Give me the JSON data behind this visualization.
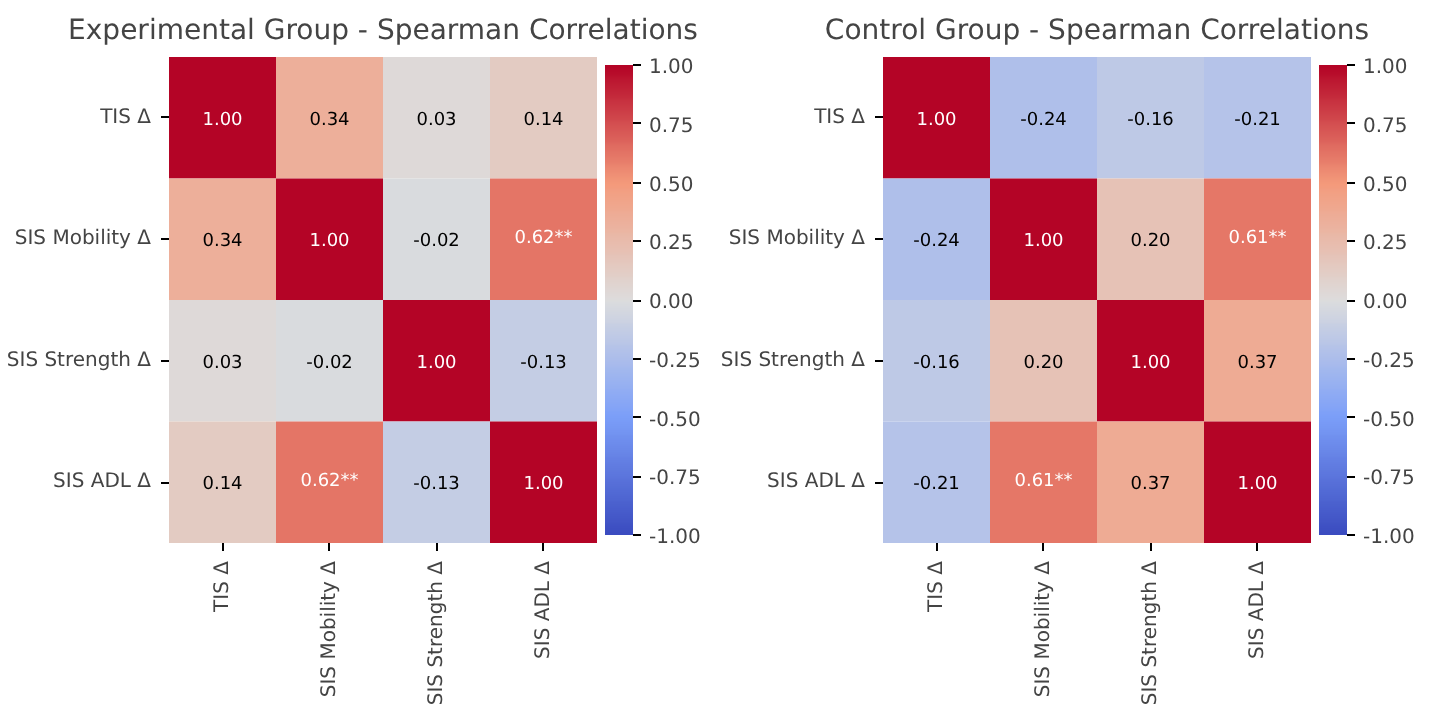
{
  "chart_data": [
    {
      "type": "heatmap",
      "title": "Experimental Group - Spearman Correlations",
      "categories": [
        "TIS Δ",
        "SIS Mobility Δ",
        "SIS Strength Δ",
        "SIS ADL Δ"
      ],
      "y_categories": [
        "TIS Δ",
        "SIS Mobility Δ",
        "SIS Strength Δ",
        "SIS ADL Δ"
      ],
      "cells": [
        [
          1.0,
          0.34,
          0.03,
          0.14
        ],
        [
          0.34,
          1.0,
          -0.02,
          0.62
        ],
        [
          0.03,
          -0.02,
          1.0,
          -0.13
        ],
        [
          0.14,
          0.62,
          -0.13,
          1.0
        ]
      ],
      "cell_labels": [
        [
          "1.00",
          "0.34",
          "0.03",
          "0.14"
        ],
        [
          "0.34",
          "1.00",
          "-0.02",
          "0.62**"
        ],
        [
          "0.03",
          "-0.02",
          "1.00",
          "-0.13"
        ],
        [
          "0.14",
          "0.62**",
          "-0.13",
          "1.00"
        ]
      ],
      "clim": [
        -1,
        1
      ],
      "cticks": [
        {
          "value": -1,
          "label": "-1.00"
        },
        {
          "value": -0.75,
          "label": "-0.75"
        },
        {
          "value": -0.5,
          "label": "-0.50"
        },
        {
          "value": -0.25,
          "label": "-0.25"
        },
        {
          "value": 0,
          "label": "0.00"
        },
        {
          "value": 0.25,
          "label": "0.25"
        },
        {
          "value": 0.5,
          "label": "0.50"
        },
        {
          "value": 0.75,
          "label": "0.75"
        },
        {
          "value": 1,
          "label": "1.00"
        }
      ]
    },
    {
      "type": "heatmap",
      "title": "Control Group - Spearman Correlations",
      "categories": [
        "TIS Δ",
        "SIS Mobility Δ",
        "SIS Strength Δ",
        "SIS ADL Δ"
      ],
      "y_categories": [
        "TIS Δ",
        "SIS Mobility Δ",
        "SIS Strength Δ",
        "SIS ADL Δ"
      ],
      "cells": [
        [
          1.0,
          -0.24,
          -0.16,
          -0.21
        ],
        [
          -0.24,
          1.0,
          0.2,
          0.61
        ],
        [
          -0.16,
          0.2,
          1.0,
          0.37
        ],
        [
          -0.21,
          0.61,
          0.37,
          1.0
        ]
      ],
      "cell_labels": [
        [
          "1.00",
          "-0.24",
          "-0.16",
          "-0.21"
        ],
        [
          "-0.24",
          "1.00",
          "0.20",
          "0.61**"
        ],
        [
          "-0.16",
          "0.20",
          "1.00",
          "0.37"
        ],
        [
          "-0.21",
          "0.61**",
          "0.37",
          "1.00"
        ]
      ],
      "clim": [
        -1,
        1
      ],
      "cticks": [
        {
          "value": -1,
          "label": "-1.00"
        },
        {
          "value": -0.75,
          "label": "-0.75"
        },
        {
          "value": -0.5,
          "label": "-0.50"
        },
        {
          "value": -0.25,
          "label": "-0.25"
        },
        {
          "value": 0,
          "label": "0.00"
        },
        {
          "value": 0.25,
          "label": "0.25"
        },
        {
          "value": 0.5,
          "label": "0.50"
        },
        {
          "value": 0.75,
          "label": "0.75"
        },
        {
          "value": 1,
          "label": "1.00"
        }
      ]
    }
  ]
}
